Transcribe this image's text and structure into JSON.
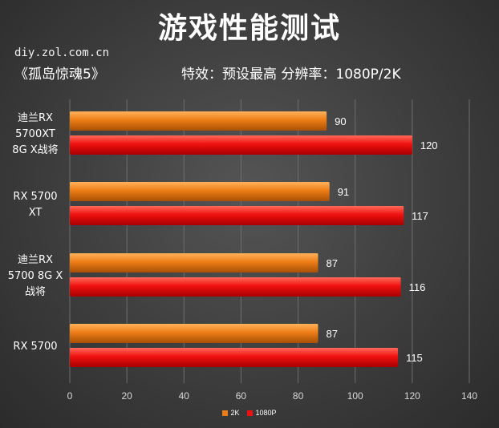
{
  "title": "游戏性能测试",
  "source": "diy.zol.com.cn",
  "game": "《孤岛惊魂5》",
  "settings": "特效：预设最高   分辨率：1080P/2K",
  "colors": {
    "2K": "#ed7d16",
    "1080P": "#f01010"
  },
  "chart_data": {
    "type": "bar",
    "orientation": "horizontal",
    "categories": [
      [
        "迪兰RX",
        "5700XT",
        "8G X战将"
      ],
      [
        "RX 5700",
        "XT"
      ],
      [
        "迪兰RX",
        "5700 8G X",
        "战将"
      ],
      [
        "RX 5700"
      ]
    ],
    "series": [
      {
        "name": "2K",
        "values": [
          90,
          91,
          87,
          87
        ]
      },
      {
        "name": "1080P",
        "values": [
          120,
          117,
          116,
          115
        ]
      }
    ],
    "xlim": [
      0,
      140
    ],
    "xticks": [
      0,
      20,
      40,
      60,
      80,
      100,
      120,
      140
    ],
    "grid": true,
    "legend_position": "bottom"
  }
}
